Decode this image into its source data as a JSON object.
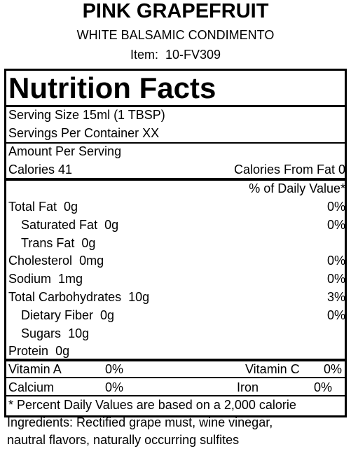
{
  "header": {
    "title": "PINK GRAPEFRUIT",
    "subtitle": "WHITE BALSAMIC CONDIMENTO",
    "item_label": "Item:",
    "item_code": "10-FV309"
  },
  "panel": {
    "title": "Nutrition Facts",
    "serving_size": "Serving Size  15ml (1 TBSP)",
    "servings_per_container": "Servings Per Container  XX",
    "amount_per_serving": "Amount Per Serving",
    "calories": "Calories 41",
    "calories_from_fat": "Calories From Fat 0",
    "dv_header": "% of Daily Value*",
    "nutrients": [
      {
        "name": "Total Fat",
        "amount": "0g",
        "dv": "0%"
      },
      {
        "name": "Saturated Fat",
        "amount": "0g",
        "dv": "0%"
      },
      {
        "name": "Trans Fat",
        "amount": "0g"
      },
      {
        "name": "Cholesterol",
        "amount": "0mg",
        "dv": "0%"
      },
      {
        "name": "Sodium",
        "amount": "1mg",
        "dv": "0%"
      },
      {
        "name": "Total Carbohydrates",
        "amount": "10g",
        "dv": "3%"
      },
      {
        "name": "Dietary Fiber",
        "amount": "0g",
        "dv": "0%"
      },
      {
        "name": "Sugars",
        "amount": "10g"
      },
      {
        "name": "Protein",
        "amount": "0g"
      }
    ],
    "vitamins": [
      [
        {
          "name": "Vitamin A",
          "dv": "0%"
        },
        {
          "name": "Vitamin C",
          "dv": "0%"
        }
      ],
      [
        {
          "name": "Calcium",
          "dv": "0%"
        },
        {
          "name": "Iron",
          "dv": "0%"
        }
      ]
    ],
    "footnote": "* Percent Daily Values are based on a 2,000 calorie"
  },
  "ingredients": [
    "Ingredients: Rectified grape must, wine vinegar,",
    "nautral flavors, naturally occurring sulfites"
  ]
}
